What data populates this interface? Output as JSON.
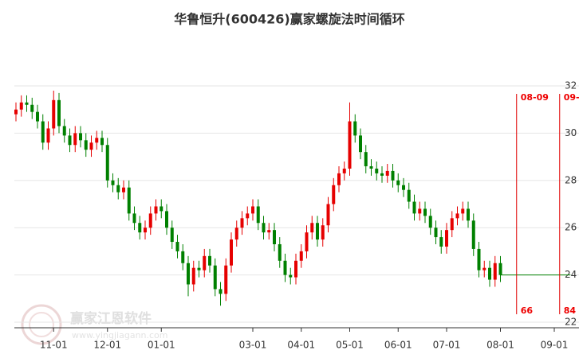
{
  "chart_data": {
    "type": "candlestick",
    "title": "华鲁恒升(600426)赢家螺旋法时间循环",
    "watermark": "赢家江恩软件",
    "watermark_url": "www.yingjiagann.com",
    "categories": [
      null,
      null,
      null,
      null,
      null,
      null,
      null,
      "11-01",
      null,
      null,
      null,
      null,
      null,
      null,
      null,
      null,
      null,
      "12-01",
      null,
      null,
      null,
      null,
      null,
      null,
      null,
      null,
      null,
      "01-01",
      null,
      null,
      null,
      null,
      null,
      null,
      null,
      null,
      null,
      null,
      null,
      null,
      null,
      null,
      null,
      null,
      "03-01",
      null,
      null,
      null,
      null,
      null,
      null,
      null,
      null,
      "04-01",
      null,
      null,
      null,
      null,
      null,
      null,
      null,
      null,
      "05-01",
      null,
      null,
      null,
      null,
      null,
      null,
      null,
      null,
      "06-01",
      null,
      null,
      null,
      null,
      null,
      null,
      null,
      null,
      "07-01",
      null,
      null,
      null,
      null,
      null,
      null,
      null,
      null,
      null,
      "08-01",
      null,
      null,
      null,
      null,
      null,
      null,
      null,
      null,
      null,
      "09-01",
      null,
      null,
      null
    ],
    "open": [
      30.8,
      31.0,
      31.3,
      31.2,
      30.9,
      30.5,
      29.6,
      30.2,
      31.4,
      30.3,
      29.9,
      29.5,
      30.0,
      29.7,
      29.3,
      29.6,
      29.8,
      29.5,
      28.0,
      27.8,
      27.5,
      27.7,
      26.6,
      26.2,
      25.8,
      26.0,
      26.6,
      26.9,
      26.7,
      26.0,
      25.4,
      25.0,
      24.5,
      23.6,
      24.3,
      24.2,
      24.8,
      24.4,
      23.4,
      23.2,
      24.4,
      25.5,
      26.0,
      26.4,
      26.6,
      26.9,
      26.2,
      25.8,
      25.9,
      25.3,
      24.6,
      24.0,
      23.9,
      24.6,
      25.0,
      25.8,
      26.2,
      25.5,
      26.1,
      27.0,
      27.8,
      28.3,
      28.5,
      30.5,
      29.9,
      29.2,
      28.6,
      28.5,
      28.3,
      28.2,
      28.4,
      28.0,
      27.8,
      27.6,
      27.1,
      26.6,
      26.8,
      26.5,
      26.0,
      25.6,
      25.2,
      25.9,
      26.4,
      26.6,
      26.8,
      26.3,
      25.1,
      24.2,
      24.3,
      23.8,
      24.5,
      null,
      null,
      null,
      null,
      null,
      null,
      null,
      null,
      null,
      null,
      null,
      null,
      null
    ],
    "high": [
      31.3,
      31.6,
      31.6,
      31.5,
      31.2,
      30.8,
      30.5,
      31.8,
      31.7,
      30.6,
      30.2,
      30.3,
      30.3,
      30.0,
      29.9,
      30.1,
      30.1,
      29.8,
      28.3,
      28.1,
      28.0,
      28.0,
      26.9,
      26.5,
      26.3,
      26.9,
      27.2,
      27.2,
      27.0,
      26.3,
      25.7,
      25.3,
      24.8,
      24.6,
      24.6,
      25.1,
      25.1,
      24.7,
      23.7,
      24.7,
      25.8,
      26.3,
      26.7,
      26.9,
      27.2,
      27.2,
      26.5,
      26.2,
      26.2,
      25.6,
      24.9,
      24.3,
      24.9,
      25.3,
      26.1,
      26.5,
      26.5,
      26.4,
      27.3,
      28.1,
      28.6,
      28.8,
      31.3,
      30.8,
      30.2,
      29.5,
      28.9,
      28.8,
      28.6,
      28.7,
      28.7,
      28.3,
      28.1,
      27.9,
      27.4,
      27.1,
      27.1,
      26.8,
      26.3,
      25.9,
      26.2,
      26.7,
      26.9,
      27.1,
      27.1,
      26.6,
      25.4,
      24.6,
      24.6,
      24.8,
      24.8,
      null,
      null,
      null,
      null,
      null,
      null,
      null,
      null,
      null,
      null,
      null,
      null,
      null
    ],
    "low": [
      30.5,
      30.7,
      30.9,
      30.6,
      30.2,
      29.3,
      29.3,
      29.9,
      30.0,
      29.6,
      29.2,
      29.2,
      29.4,
      29.0,
      29.0,
      29.3,
      29.2,
      27.7,
      27.5,
      27.2,
      27.2,
      26.3,
      25.9,
      25.5,
      25.5,
      25.7,
      26.3,
      26.4,
      25.7,
      25.1,
      24.7,
      24.2,
      23.1,
      23.3,
      23.9,
      23.9,
      24.1,
      23.1,
      22.7,
      22.9,
      24.1,
      25.2,
      25.7,
      26.1,
      26.3,
      25.9,
      25.5,
      25.5,
      25.0,
      24.3,
      23.7,
      23.6,
      23.6,
      24.3,
      24.7,
      25.5,
      25.2,
      25.2,
      25.8,
      26.7,
      27.5,
      28.0,
      28.2,
      29.6,
      28.9,
      28.3,
      28.2,
      28.0,
      27.9,
      27.9,
      27.7,
      27.5,
      27.3,
      26.8,
      26.3,
      26.3,
      26.2,
      25.7,
      25.3,
      24.9,
      24.9,
      25.6,
      26.1,
      26.3,
      26.0,
      24.8,
      23.9,
      23.9,
      23.5,
      23.5,
      23.7,
      null,
      null,
      null,
      null,
      null,
      null,
      null,
      null,
      null,
      null,
      null,
      null,
      null
    ],
    "close": [
      31.0,
      31.3,
      31.2,
      30.9,
      30.5,
      29.6,
      30.2,
      31.4,
      30.3,
      29.9,
      29.5,
      30.0,
      29.7,
      29.3,
      29.6,
      29.8,
      29.5,
      28.0,
      27.8,
      27.5,
      27.7,
      26.6,
      26.2,
      25.8,
      26.0,
      26.6,
      26.9,
      26.7,
      26.0,
      25.4,
      25.0,
      24.5,
      23.6,
      24.3,
      24.2,
      24.8,
      24.4,
      23.4,
      23.2,
      24.4,
      25.5,
      26.0,
      26.4,
      26.6,
      26.9,
      26.2,
      25.8,
      25.9,
      25.3,
      24.6,
      24.0,
      23.9,
      24.6,
      25.0,
      25.8,
      26.2,
      25.5,
      26.1,
      27.0,
      27.8,
      28.3,
      28.5,
      30.5,
      29.9,
      29.2,
      28.6,
      28.5,
      28.3,
      28.2,
      28.4,
      28.0,
      27.8,
      27.6,
      27.1,
      26.6,
      26.8,
      26.5,
      26.0,
      25.6,
      25.2,
      25.9,
      26.4,
      26.6,
      26.8,
      26.3,
      25.1,
      24.2,
      24.3,
      23.8,
      24.5,
      24.0,
      null,
      null,
      null,
      null,
      null,
      null,
      null,
      null,
      null,
      null,
      null,
      null,
      null
    ],
    "up_color": "#e60000",
    "down_color": "#008000",
    "projection": {
      "color": "#008000",
      "values": [
        null,
        null,
        null,
        null,
        null,
        null,
        null,
        null,
        null,
        null,
        null,
        null,
        null,
        null,
        null,
        null,
        null,
        null,
        null,
        null,
        null,
        null,
        null,
        null,
        null,
        null,
        null,
        null,
        null,
        null,
        null,
        null,
        null,
        null,
        null,
        null,
        null,
        null,
        null,
        null,
        null,
        null,
        null,
        null,
        null,
        null,
        null,
        null,
        null,
        null,
        null,
        null,
        null,
        null,
        null,
        null,
        null,
        null,
        null,
        null,
        null,
        null,
        null,
        null,
        null,
        null,
        null,
        null,
        null,
        null,
        null,
        null,
        null,
        null,
        null,
        null,
        null,
        null,
        null,
        null,
        null,
        null,
        null,
        null,
        null,
        null,
        null,
        null,
        null,
        null,
        24.0,
        24.0,
        24.0,
        24.0,
        24.0,
        24.0,
        24.0,
        24.0,
        24.0,
        24.0,
        24.0,
        24.0,
        24.0,
        24.0
      ]
    },
    "markers": [
      {
        "at": 93,
        "label": "08-09",
        "count": "66"
      },
      {
        "at": 101,
        "label": "09-",
        "count": "84"
      }
    ],
    "marker_color": "#e00000",
    "ylim": [
      22,
      32
    ],
    "yticks": [
      22,
      24,
      26,
      28,
      30,
      32
    ],
    "grid": true
  }
}
